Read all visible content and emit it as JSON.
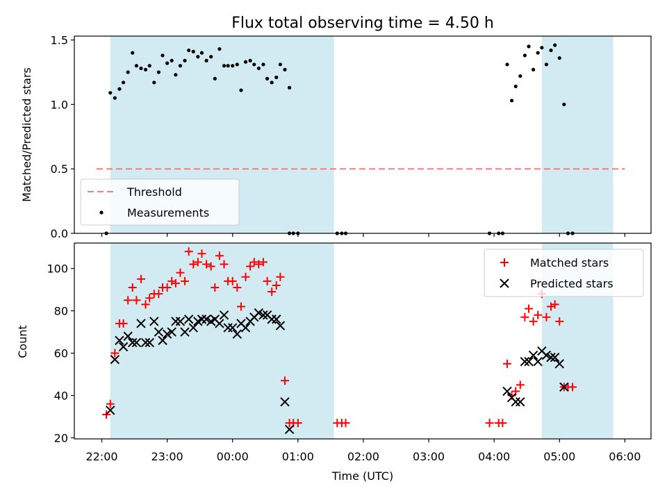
{
  "chart_data": {
    "type": "scatter",
    "title": "Flux total observing time = 4.50 h",
    "xlabel": "Time (UTC)",
    "x_tick_labels": [
      "22:00",
      "23:00",
      "00:00",
      "01:00",
      "02:00",
      "03:00",
      "04:00",
      "05:00",
      "06:00"
    ],
    "x_tick_hours": [
      0,
      1,
      2,
      3,
      4,
      5,
      6,
      7,
      8
    ],
    "x_origin_label": "22:00",
    "x_range_hours": [
      -0.42,
      8.4
    ],
    "shaded_intervals_hours": [
      [
        0.13,
        3.55
      ],
      [
        6.73,
        7.82
      ]
    ],
    "shade_color": "#add8e6",
    "panels": [
      {
        "name": "ratio",
        "ylabel": "Matched/Predicted stars",
        "ylim": [
          0,
          1.53
        ],
        "yticks": [
          0.0,
          0.5,
          1.0,
          1.5
        ],
        "ytick_labels": [
          "0.0",
          "0.5",
          "1.0",
          "1.5"
        ],
        "legend_position": "lower-left",
        "threshold": {
          "name": "Threshold",
          "value": 0.5,
          "x_from": -0.08,
          "x_to": 8.0,
          "color": "#f08080"
        },
        "series": [
          {
            "name": "Measurements",
            "marker": "dot",
            "color": "#000000",
            "points": [
              [
                0.07,
                0.0
              ],
              [
                0.13,
                1.09
              ],
              [
                0.2,
                1.05
              ],
              [
                0.27,
                1.12
              ],
              [
                0.33,
                1.17
              ],
              [
                0.4,
                1.25
              ],
              [
                0.47,
                1.4
              ],
              [
                0.53,
                1.3
              ],
              [
                0.6,
                1.28
              ],
              [
                0.67,
                1.27
              ],
              [
                0.73,
                1.3
              ],
              [
                0.8,
                1.17
              ],
              [
                0.87,
                1.25
              ],
              [
                0.93,
                1.38
              ],
              [
                1.0,
                1.32
              ],
              [
                1.07,
                1.34
              ],
              [
                1.13,
                1.23
              ],
              [
                1.2,
                1.3
              ],
              [
                1.27,
                1.34
              ],
              [
                1.33,
                1.42
              ],
              [
                1.4,
                1.41
              ],
              [
                1.47,
                1.37
              ],
              [
                1.53,
                1.4
              ],
              [
                1.6,
                1.34
              ],
              [
                1.67,
                1.37
              ],
              [
                1.73,
                1.2
              ],
              [
                1.8,
                1.43
              ],
              [
                1.87,
                1.3
              ],
              [
                1.93,
                1.3
              ],
              [
                2.0,
                1.3
              ],
              [
                2.07,
                1.31
              ],
              [
                2.13,
                1.11
              ],
              [
                2.2,
                1.33
              ],
              [
                2.27,
                1.34
              ],
              [
                2.33,
                1.31
              ],
              [
                2.4,
                1.28
              ],
              [
                2.47,
                1.31
              ],
              [
                2.53,
                1.2
              ],
              [
                2.6,
                1.17
              ],
              [
                2.67,
                1.21
              ],
              [
                2.73,
                1.31
              ],
              [
                2.8,
                1.27
              ],
              [
                2.87,
                1.13
              ],
              [
                2.87,
                0.0
              ],
              [
                2.93,
                0.0
              ],
              [
                3.0,
                0.0
              ],
              [
                3.6,
                0.0
              ],
              [
                3.67,
                0.0
              ],
              [
                3.73,
                0.0
              ],
              [
                5.93,
                0.0
              ],
              [
                6.07,
                0.0
              ],
              [
                6.13,
                0.0
              ],
              [
                6.2,
                1.31
              ],
              [
                6.27,
                1.03
              ],
              [
                6.33,
                1.14
              ],
              [
                6.4,
                1.22
              ],
              [
                6.47,
                1.38
              ],
              [
                6.53,
                1.45
              ],
              [
                6.6,
                1.27
              ],
              [
                6.67,
                1.4
              ],
              [
                6.73,
                1.44
              ],
              [
                6.8,
                1.31
              ],
              [
                6.87,
                1.42
              ],
              [
                6.93,
                1.46
              ],
              [
                7.0,
                1.36
              ],
              [
                7.07,
                1.0
              ],
              [
                7.13,
                0.0
              ],
              [
                7.2,
                0.0
              ]
            ]
          }
        ]
      },
      {
        "name": "counts",
        "ylabel": "Count",
        "ylim": [
          19.5,
          112
        ],
        "yticks": [
          20,
          40,
          60,
          80,
          100
        ],
        "ytick_labels": [
          "20",
          "40",
          "60",
          "80",
          "100"
        ],
        "legend_position": "upper-right",
        "series": [
          {
            "name": "Matched stars",
            "marker": "plus",
            "color": "#ff0000",
            "points": [
              [
                0.07,
                31
              ],
              [
                0.13,
                36
              ],
              [
                0.2,
                60
              ],
              [
                0.27,
                74
              ],
              [
                0.33,
                74
              ],
              [
                0.4,
                85
              ],
              [
                0.47,
                91
              ],
              [
                0.53,
                85
              ],
              [
                0.6,
                95
              ],
              [
                0.67,
                83
              ],
              [
                0.73,
                86
              ],
              [
                0.8,
                88
              ],
              [
                0.87,
                88
              ],
              [
                0.93,
                91
              ],
              [
                1.0,
                91
              ],
              [
                1.07,
                94
              ],
              [
                1.13,
                93
              ],
              [
                1.2,
                98
              ],
              [
                1.27,
                94
              ],
              [
                1.33,
                108
              ],
              [
                1.4,
                102
              ],
              [
                1.47,
                103
              ],
              [
                1.53,
                107
              ],
              [
                1.6,
                102
              ],
              [
                1.67,
                101
              ],
              [
                1.73,
                91
              ],
              [
                1.8,
                106
              ],
              [
                1.87,
                102
              ],
              [
                1.93,
                94
              ],
              [
                2.0,
                94
              ],
              [
                2.07,
                91
              ],
              [
                2.13,
                82
              ],
              [
                2.2,
                96
              ],
              [
                2.27,
                101
              ],
              [
                2.33,
                103
              ],
              [
                2.4,
                102
              ],
              [
                2.47,
                103
              ],
              [
                2.53,
                94
              ],
              [
                2.6,
                89
              ],
              [
                2.67,
                92
              ],
              [
                2.73,
                96
              ],
              [
                2.8,
                47
              ],
              [
                2.87,
                27
              ],
              [
                2.93,
                27
              ],
              [
                3.0,
                27
              ],
              [
                3.6,
                27
              ],
              [
                3.67,
                27
              ],
              [
                3.73,
                27
              ],
              [
                5.93,
                27
              ],
              [
                6.07,
                27
              ],
              [
                6.13,
                27
              ],
              [
                6.2,
                55
              ],
              [
                6.27,
                40
              ],
              [
                6.33,
                42
              ],
              [
                6.4,
                45
              ],
              [
                6.47,
                77
              ],
              [
                6.53,
                81
              ],
              [
                6.6,
                75
              ],
              [
                6.67,
                78
              ],
              [
                6.73,
                88
              ],
              [
                6.8,
                77
              ],
              [
                6.87,
                82
              ],
              [
                6.93,
                83
              ],
              [
                7.0,
                75
              ],
              [
                7.07,
                44
              ],
              [
                7.13,
                44
              ],
              [
                7.2,
                44
              ]
            ]
          },
          {
            "name": "Predicted stars",
            "marker": "x",
            "color": "#000000",
            "points": [
              [
                0.13,
                33
              ],
              [
                0.2,
                57
              ],
              [
                0.27,
                66
              ],
              [
                0.33,
                63
              ],
              [
                0.4,
                68
              ],
              [
                0.47,
                65
              ],
              [
                0.53,
                65
              ],
              [
                0.6,
                74
              ],
              [
                0.67,
                65
              ],
              [
                0.73,
                65
              ],
              [
                0.8,
                75
              ],
              [
                0.87,
                70
              ],
              [
                0.93,
                66
              ],
              [
                1.0,
                69
              ],
              [
                1.07,
                70
              ],
              [
                1.13,
                75
              ],
              [
                1.2,
                75
              ],
              [
                1.27,
                70
              ],
              [
                1.33,
                76
              ],
              [
                1.4,
                72
              ],
              [
                1.47,
                75
              ],
              [
                1.53,
                76
              ],
              [
                1.6,
                76
              ],
              [
                1.67,
                75
              ],
              [
                1.73,
                76
              ],
              [
                1.8,
                74
              ],
              [
                1.87,
                78
              ],
              [
                1.93,
                72
              ],
              [
                2.0,
                72
              ],
              [
                2.07,
                69
              ],
              [
                2.13,
                74
              ],
              [
                2.2,
                72
              ],
              [
                2.27,
                75
              ],
              [
                2.33,
                77
              ],
              [
                2.4,
                79
              ],
              [
                2.47,
                78
              ],
              [
                2.53,
                78
              ],
              [
                2.6,
                76
              ],
              [
                2.67,
                76
              ],
              [
                2.73,
                73
              ],
              [
                2.8,
                37
              ],
              [
                2.87,
                24
              ],
              [
                6.2,
                42
              ],
              [
                6.27,
                39
              ],
              [
                6.33,
                37
              ],
              [
                6.4,
                37
              ],
              [
                6.47,
                56
              ],
              [
                6.53,
                56
              ],
              [
                6.6,
                59
              ],
              [
                6.67,
                56
              ],
              [
                6.73,
                61
              ],
              [
                6.8,
                59
              ],
              [
                6.87,
                58
              ],
              [
                6.93,
                58
              ],
              [
                7.0,
                55
              ],
              [
                7.07,
                44
              ]
            ]
          }
        ]
      }
    ]
  }
}
